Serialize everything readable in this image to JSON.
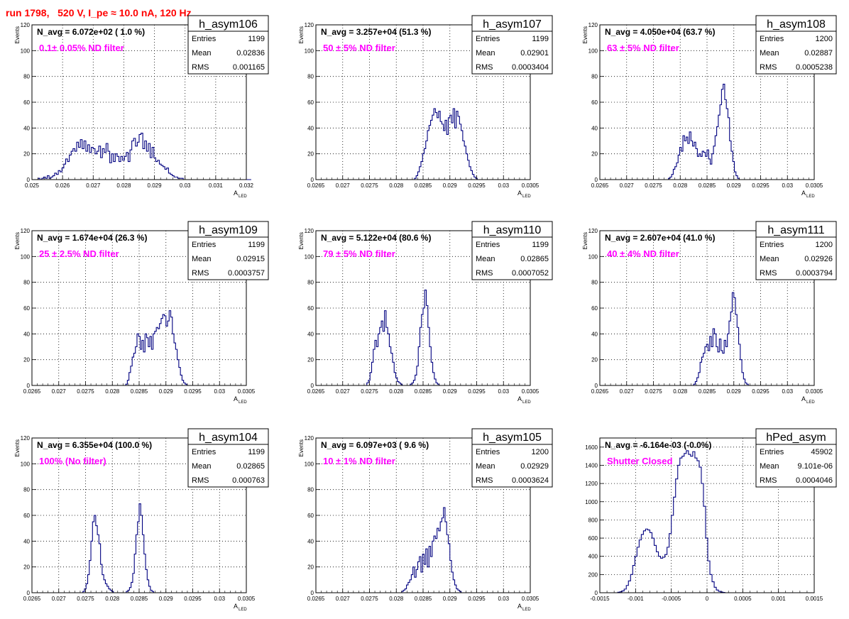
{
  "run_title": "run 1798,   520 V, I_pe ≈ 10.0 nA, 120 Hz",
  "colors": {
    "title": "#ff0000",
    "annotation": "#ff00ff",
    "hist": "#000080",
    "grid": "#000000"
  },
  "chart_data": [
    {
      "type": "histogram",
      "name": "h_asym106",
      "navg": "N_avg = 6.072e+02 ( 1.0 %)",
      "note": "0.1± 0.05% ND filter",
      "stats": {
        "Entries": "1199",
        "Mean": "0.02836",
        "RMS": "0.001165"
      },
      "ylabel": "Events",
      "xlabel": "A",
      "xlabel_sub": "LED",
      "xlim": [
        0.025,
        0.032
      ],
      "ylim": [
        0,
        120
      ],
      "xticks": [
        "0.025",
        "0.026",
        "0.027",
        "0.028",
        "0.029",
        "0.03",
        "0.031",
        "0.032"
      ],
      "xtick_values": [
        0.025,
        0.026,
        0.027,
        0.028,
        0.029,
        0.03,
        0.031,
        0.032
      ],
      "yticks": [
        "0",
        "20",
        "40",
        "60",
        "80",
        "100",
        "120"
      ],
      "x_start": 0.0252,
      "bin_width": 6e-05,
      "values": [
        1,
        0,
        1,
        2,
        1,
        3,
        1,
        2,
        3,
        5,
        4,
        7,
        6,
        9,
        12,
        16,
        14,
        19,
        22,
        24,
        22,
        29,
        25,
        31,
        24,
        30,
        22,
        27,
        21,
        25,
        24,
        20,
        22,
        26,
        17,
        24,
        21,
        28,
        22,
        13,
        20,
        14,
        20,
        18,
        14,
        18,
        15,
        18,
        21,
        14,
        23,
        30,
        32,
        26,
        29,
        35,
        36,
        24,
        30,
        22,
        28,
        17,
        25,
        17,
        14,
        15,
        12,
        11,
        10,
        8,
        9,
        5,
        4,
        3,
        2,
        2,
        1,
        1,
        1,
        0,
        0,
        0,
        0,
        0,
        0,
        0,
        0,
        0,
        0,
        0,
        0,
        0,
        0,
        0,
        0,
        0,
        0,
        0,
        0,
        0,
        0,
        0,
        0,
        0,
        0,
        0,
        0,
        0,
        0,
        0,
        0,
        0,
        0,
        0,
        0,
        0
      ]
    },
    {
      "type": "histogram",
      "name": "h_asym107",
      "navg": "N_avg = 3.257e+04 (51.3 %)",
      "note": "50 ± 5% ND filter",
      "stats": {
        "Entries": "1199",
        "Mean": "0.02901",
        "RMS": "0.0003404"
      },
      "ylabel": "Events",
      "xlabel": "A",
      "xlabel_sub": "LED",
      "xlim": [
        0.0265,
        0.0305
      ],
      "ylim": [
        0,
        120
      ],
      "xticks": [
        "0.0265",
        "0.027",
        "0.0275",
        "0.028",
        "0.0285",
        "0.029",
        "0.0295",
        "0.03",
        "0.0305"
      ],
      "xtick_values": [
        0.0265,
        0.027,
        0.0275,
        0.028,
        0.0285,
        0.029,
        0.0295,
        0.03,
        0.0305
      ],
      "yticks": [
        "0",
        "20",
        "40",
        "60",
        "80",
        "100",
        "120"
      ],
      "x_start": 0.02834,
      "bin_width": 3e-05,
      "values": [
        1,
        3,
        6,
        10,
        14,
        20,
        24,
        30,
        38,
        42,
        46,
        50,
        55,
        52,
        48,
        53,
        45,
        43,
        38,
        46,
        35,
        48,
        50,
        44,
        55,
        40,
        53,
        49,
        43,
        38,
        30,
        26,
        20,
        15,
        10,
        7,
        4,
        2,
        1,
        0,
        0,
        0
      ]
    },
    {
      "type": "histogram",
      "name": "h_asym108",
      "navg": "N_avg = 4.050e+04 (63.7 %)",
      "note": "63 ± 5% ND filter",
      "stats": {
        "Entries": "1200",
        "Mean": "0.02887",
        "RMS": "0.0005238"
      },
      "ylabel": "Events",
      "xlabel": "A",
      "xlabel_sub": "LED",
      "xlim": [
        0.0265,
        0.0305
      ],
      "ylim": [
        0,
        120
      ],
      "xticks": [
        "0.0265",
        "0.027",
        "0.0275",
        "0.028",
        "0.0285",
        "0.029",
        "0.0295",
        "0.03",
        "0.0305"
      ],
      "xtick_values": [
        0.0265,
        0.027,
        0.0275,
        0.028,
        0.0285,
        0.029,
        0.0295,
        0.03,
        0.0305
      ],
      "yticks": [
        "0",
        "20",
        "40",
        "60",
        "80",
        "100",
        "120"
      ],
      "x_start": 0.02778,
      "bin_width": 3e-05,
      "values": [
        1,
        2,
        4,
        8,
        10,
        13,
        19,
        25,
        22,
        34,
        30,
        33,
        28,
        37,
        30,
        26,
        29,
        24,
        18,
        20,
        18,
        22,
        21,
        18,
        23,
        16,
        12,
        20,
        26,
        34,
        41,
        50,
        58,
        70,
        74,
        62,
        55,
        48,
        30,
        22,
        14,
        6,
        3,
        1,
        0
      ]
    },
    {
      "type": "histogram",
      "name": "h_asym109",
      "navg": "N_avg = 1.674e+04 (26.3 %)",
      "note": "25 ± 2.5% ND filter",
      "stats": {
        "Entries": "1199",
        "Mean": "0.02915",
        "RMS": "0.0003757"
      },
      "ylabel": "Events",
      "xlabel": "A",
      "xlabel_sub": "LED",
      "xlim": [
        0.0265,
        0.0305
      ],
      "ylim": [
        0,
        120
      ],
      "xticks": [
        "0.0265",
        "0.027",
        "0.0275",
        "0.028",
        "0.0285",
        "0.029",
        "0.0295",
        "0.03",
        "0.0305"
      ],
      "xtick_values": [
        0.0265,
        0.027,
        0.0275,
        0.028,
        0.0285,
        0.029,
        0.0295,
        0.03,
        0.0305
      ],
      "yticks": [
        "0",
        "20",
        "40",
        "60",
        "80",
        "100",
        "120"
      ],
      "x_start": 0.02825,
      "bin_width": 3e-05,
      "values": [
        1,
        4,
        10,
        15,
        22,
        25,
        30,
        40,
        38,
        28,
        35,
        26,
        40,
        37,
        30,
        38,
        28,
        40,
        42,
        45,
        44,
        48,
        52,
        55,
        54,
        46,
        50,
        58,
        53,
        40,
        33,
        28,
        20,
        14,
        8,
        4,
        2,
        1,
        0
      ]
    },
    {
      "type": "histogram",
      "name": "h_asym110",
      "navg": "N_avg = 5.122e+04 (80.6 %)",
      "note": "79 ± 5% ND filter",
      "stats": {
        "Entries": "1199",
        "Mean": "0.02865",
        "RMS": "0.0007052"
      },
      "ylabel": "Events",
      "xlabel": "A",
      "xlabel_sub": "LED",
      "xlim": [
        0.0265,
        0.0305
      ],
      "ylim": [
        0,
        120
      ],
      "xticks": [
        "0.0265",
        "0.027",
        "0.0275",
        "0.028",
        "0.0285",
        "0.029",
        "0.0295",
        "0.03",
        "0.0305"
      ],
      "xtick_values": [
        0.0265,
        0.027,
        0.0275,
        0.028,
        0.0285,
        0.029,
        0.0295,
        0.03,
        0.0305
      ],
      "yticks": [
        "0",
        "20",
        "40",
        "60",
        "80",
        "100",
        "120"
      ],
      "x_start": 0.02745,
      "bin_width": 3e-05,
      "values": [
        2,
        4,
        10,
        18,
        28,
        35,
        30,
        40,
        45,
        50,
        42,
        58,
        45,
        40,
        30,
        25,
        18,
        10,
        6,
        3,
        2,
        1,
        0,
        0,
        0,
        0,
        0,
        1,
        2,
        4,
        8,
        15,
        30,
        45,
        55,
        60,
        74,
        62,
        45,
        30,
        18,
        10,
        5,
        2,
        1,
        0
      ]
    },
    {
      "type": "histogram",
      "name": "h_asym111",
      "navg": "N_avg = 2.607e+04 (41.0 %)",
      "note": "40 ± 4% ND filter",
      "stats": {
        "Entries": "1200",
        "Mean": "0.02926",
        "RMS": "0.0003794"
      },
      "ylabel": "Events",
      "xlabel": "A",
      "xlabel_sub": "LED",
      "xlim": [
        0.0265,
        0.0305
      ],
      "ylim": [
        0,
        120
      ],
      "xticks": [
        "0.0265",
        "0.027",
        "0.0275",
        "0.028",
        "0.0285",
        "0.029",
        "0.0295",
        "0.03",
        "0.0305"
      ],
      "xtick_values": [
        0.0265,
        0.027,
        0.0275,
        0.028,
        0.0285,
        0.029,
        0.0295,
        0.03,
        0.0305
      ],
      "yticks": [
        "0",
        "20",
        "40",
        "60",
        "80",
        "100",
        "120"
      ],
      "x_start": 0.02825,
      "bin_width": 3e-05,
      "values": [
        1,
        3,
        6,
        10,
        18,
        22,
        25,
        30,
        32,
        27,
        38,
        30,
        44,
        40,
        30,
        26,
        36,
        27,
        25,
        35,
        30,
        40,
        50,
        57,
        72,
        68,
        55,
        45,
        32,
        20,
        10,
        5,
        2,
        1,
        0
      ]
    },
    {
      "type": "histogram",
      "name": "h_asym104",
      "navg": "N_avg = 6.355e+04 (100.0 %)",
      "note": "100% (No filter)",
      "stats": {
        "Entries": "1199",
        "Mean": "0.02865",
        "RMS": "0.000763"
      },
      "ylabel": "Events",
      "xlabel": "A",
      "xlabel_sub": "LED",
      "xlim": [
        0.0265,
        0.0305
      ],
      "ylim": [
        0,
        120
      ],
      "xticks": [
        "0.0265",
        "0.027",
        "0.0275",
        "0.028",
        "0.0285",
        "0.029",
        "0.0295",
        "0.03",
        "0.0305"
      ],
      "xtick_values": [
        0.0265,
        0.027,
        0.0275,
        0.028,
        0.0285,
        0.029,
        0.0295,
        0.03,
        0.0305
      ],
      "yticks": [
        "0",
        "20",
        "40",
        "60",
        "80",
        "100",
        "120"
      ],
      "x_start": 0.02745,
      "bin_width": 3e-05,
      "values": [
        1,
        3,
        7,
        14,
        25,
        40,
        55,
        60,
        52,
        45,
        38,
        22,
        14,
        10,
        7,
        5,
        3,
        2,
        1,
        0,
        0,
        0,
        0,
        0,
        0,
        0,
        0,
        1,
        2,
        4,
        8,
        15,
        30,
        45,
        55,
        69,
        60,
        45,
        30,
        18,
        10,
        5,
        2,
        1,
        0
      ]
    },
    {
      "type": "histogram",
      "name": "h_asym105",
      "navg": "N_avg = 6.097e+03 ( 9.6 %)",
      "note": "10 ± 1% ND filter",
      "stats": {
        "Entries": "1200",
        "Mean": "0.02929",
        "RMS": "0.0003624"
      },
      "ylabel": "Events",
      "xlabel": "A",
      "xlabel_sub": "LED",
      "xlim": [
        0.0265,
        0.0305
      ],
      "ylim": [
        0,
        120
      ],
      "xticks": [
        "0.0265",
        "0.027",
        "0.0275",
        "0.028",
        "0.0285",
        "0.029",
        "0.0295",
        "0.03",
        "0.0305"
      ],
      "xtick_values": [
        0.0265,
        0.027,
        0.0275,
        0.028,
        0.0285,
        0.029,
        0.0295,
        0.03,
        0.0305
      ],
      "yticks": [
        "0",
        "20",
        "40",
        "60",
        "80",
        "100",
        "120"
      ],
      "x_start": 0.0281,
      "bin_width": 3e-05,
      "values": [
        1,
        2,
        3,
        6,
        8,
        10,
        14,
        20,
        12,
        18,
        24,
        28,
        16,
        30,
        22,
        34,
        20,
        36,
        28,
        40,
        44,
        42,
        50,
        48,
        55,
        58,
        66,
        55,
        45,
        38,
        25,
        16,
        10,
        6,
        3,
        2,
        1,
        0
      ]
    },
    {
      "type": "histogram",
      "name": "hPed_asym",
      "navg": "N_avg = -6.164e-03 (-0.0%)",
      "note": "Shutter Closed",
      "stats": {
        "Entries": "45902",
        "Mean": "9.101e-06",
        "RMS": "0.0004046"
      },
      "ylabel": "",
      "xlabel": "",
      "xlabel_sub": "",
      "xlim": [
        -0.0015,
        0.0015
      ],
      "ylim": [
        0,
        1700
      ],
      "xticks": [
        "-0.0015",
        "-0.001",
        "-0.0005",
        "0",
        "0.0005",
        "0.001",
        "0.0015"
      ],
      "xtick_values": [
        -0.0015,
        -0.001,
        -0.0005,
        0,
        0.0005,
        0.001,
        0.0015
      ],
      "yticks": [
        "0",
        "200",
        "400",
        "600",
        "800",
        "1000",
        "1200",
        "1400",
        "1600"
      ],
      "x_start": -0.00125,
      "bin_width": 3e-05,
      "values": [
        5,
        10,
        20,
        40,
        80,
        130,
        200,
        300,
        400,
        500,
        580,
        640,
        680,
        700,
        690,
        660,
        600,
        520,
        450,
        400,
        380,
        390,
        420,
        500,
        650,
        850,
        1050,
        1250,
        1400,
        1480,
        1500,
        1530,
        1560,
        1520,
        1500,
        1550,
        1480,
        1450,
        1380,
        1200,
        950,
        600,
        350,
        200,
        120,
        60,
        30,
        15,
        8,
        4
      ]
    }
  ]
}
